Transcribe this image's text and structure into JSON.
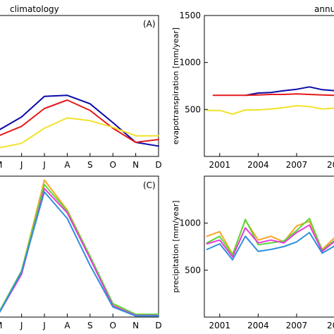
{
  "figure": {
    "title_left": "climatology",
    "title_right": "annu"
  },
  "chart_data": [
    {
      "type": "line",
      "panel_label": "(A)",
      "xlabel": "",
      "ylabel": "",
      "categories": [
        "M",
        "J",
        "J",
        "A",
        "S",
        "O",
        "N",
        "D"
      ],
      "x": [
        5,
        6,
        7,
        8,
        9,
        10,
        11,
        12
      ],
      "xlim": [
        4.9,
        12
      ],
      "ylim": [
        0,
        150
      ],
      "grid": false,
      "series": [
        {
          "color": "#0a0aa8",
          "values": [
            28,
            42,
            64,
            65,
            56,
            36,
            15,
            11
          ]
        },
        {
          "color": "#e31a1c",
          "values": [
            22,
            32,
            51,
            60,
            49,
            30,
            15,
            18
          ]
        },
        {
          "color": "#f2e229",
          "values": [
            9,
            14,
            30,
            41,
            38,
            31,
            22,
            22
          ]
        }
      ]
    },
    {
      "type": "line",
      "panel_label": "",
      "xlabel": "",
      "ylabel": "evapotranspiration [mm/year]",
      "x_ticks": [
        2001,
        2004,
        2007,
        "201"
      ],
      "x_tick_values": [
        2001,
        2004,
        2007,
        2010
      ],
      "y_ticks": [
        500,
        1000,
        1500
      ],
      "xlim": [
        1999.8,
        2010.8
      ],
      "ylim": [
        0,
        1500
      ],
      "grid": false,
      "series": [
        {
          "color": "#0a0aa8",
          "x": [
            2003,
            2004,
            2005,
            2006,
            2007,
            2008,
            2009,
            2010,
            2010.8
          ],
          "values": [
            650,
            675,
            680,
            700,
            715,
            740,
            710,
            700,
            720
          ]
        },
        {
          "color": "#e31a1c",
          "x": [
            2000.5,
            2001,
            2002,
            2003,
            2004,
            2005,
            2006,
            2007,
            2008,
            2009,
            2010,
            2010.8
          ],
          "values": [
            650,
            650,
            650,
            650,
            655,
            660,
            660,
            665,
            660,
            655,
            650,
            652
          ]
        },
        {
          "color": "#f2e229",
          "x": [
            2000,
            2001,
            2002,
            2003,
            2004,
            2005,
            2006,
            2007,
            2008,
            2009,
            2010,
            2010.8
          ],
          "values": [
            490,
            490,
            450,
            495,
            495,
            505,
            520,
            540,
            530,
            505,
            515,
            530
          ]
        }
      ]
    },
    {
      "type": "line",
      "panel_label": "(C)",
      "xlabel": "",
      "ylabel": "",
      "categories": [
        "M",
        "J",
        "J",
        "A",
        "S",
        "O",
        "N",
        "D"
      ],
      "x": [
        5,
        6,
        7,
        8,
        9,
        10,
        11,
        12
      ],
      "xlim": [
        4.9,
        12
      ],
      "ylim": [
        0,
        250
      ],
      "grid": false,
      "series": [
        {
          "color": "#f5a623",
          "values": [
            7,
            82,
            243,
            190,
            108,
            22,
            3,
            3
          ]
        },
        {
          "color": "#5ad83a",
          "values": [
            8,
            82,
            235,
            188,
            108,
            24,
            5,
            5
          ]
        },
        {
          "color": "#e83ad8",
          "values": [
            6,
            76,
            228,
            185,
            104,
            20,
            3,
            3
          ]
        },
        {
          "color": "#2f8fdc",
          "values": [
            6,
            80,
            222,
            175,
            92,
            18,
            2,
            2
          ]
        }
      ]
    },
    {
      "type": "line",
      "panel_label": "",
      "xlabel": "",
      "ylabel": "precipitation [mm/year]",
      "x_ticks": [
        2001,
        2004,
        2007,
        "201"
      ],
      "x_tick_values": [
        2001,
        2004,
        2007,
        2010
      ],
      "y_ticks": [
        500,
        1000
      ],
      "xlim": [
        1999.8,
        2010.8
      ],
      "ylim": [
        0,
        1500
      ],
      "grid": false,
      "series": [
        {
          "color": "#f5a623",
          "x": [
            2000,
            2001,
            2002,
            2003,
            2004,
            2005,
            2006,
            2007,
            2008,
            2009,
            2010,
            2010.8
          ],
          "values": [
            860,
            910,
            670,
            1030,
            820,
            860,
            800,
            970,
            1020,
            720,
            850,
            1000
          ]
        },
        {
          "color": "#5ad83a",
          "x": [
            2000,
            2001,
            2002,
            2003,
            2004,
            2005,
            2006,
            2007,
            2008,
            2009,
            2010,
            2010.8
          ],
          "values": [
            790,
            860,
            660,
            1040,
            770,
            790,
            810,
            920,
            1050,
            710,
            820,
            950
          ]
        },
        {
          "color": "#e83ad8",
          "x": [
            2000,
            2001,
            2002,
            2003,
            2004,
            2005,
            2006,
            2007,
            2008,
            2009,
            2010,
            2010.8
          ],
          "values": [
            780,
            820,
            640,
            950,
            790,
            820,
            790,
            900,
            980,
            700,
            810,
            950
          ]
        },
        {
          "color": "#2f8fdc",
          "x": [
            2000,
            2001,
            2002,
            2003,
            2004,
            2005,
            2006,
            2007,
            2008,
            2009,
            2010,
            2010.8
          ],
          "values": [
            720,
            780,
            610,
            860,
            700,
            720,
            750,
            800,
            900,
            680,
            760,
            850
          ]
        }
      ]
    }
  ]
}
